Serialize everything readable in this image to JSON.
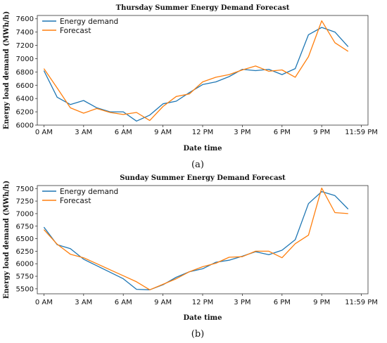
{
  "chart_data": [
    {
      "type": "line",
      "title": "Thursday Summer  Energy Demand Forecast",
      "xlabel": "Date time",
      "ylabel": "Energy load demand (MWh/h)",
      "caption": "(a)",
      "x_ticks": [
        "0 AM",
        "3 AM",
        "6 AM",
        "9 AM",
        "12 PM",
        "3 PM",
        "6 PM",
        "9 PM",
        "11:59 PM"
      ],
      "y_ticks": [
        6000,
        6200,
        6400,
        6600,
        6800,
        7000,
        7200,
        7400,
        7600
      ],
      "xlim": [
        -0.5,
        24.5
      ],
      "ylim": [
        6000,
        7650
      ],
      "legend": "top-left",
      "x": [
        0,
        1,
        2,
        3,
        4,
        5,
        6,
        7,
        8,
        9,
        10,
        11,
        12,
        13,
        14,
        15,
        16,
        17,
        18,
        19,
        20,
        21,
        22,
        23
      ],
      "series": [
        {
          "name": "Energy demand",
          "color": "#1f77b4",
          "values": [
            6820,
            6420,
            6310,
            6370,
            6260,
            6200,
            6200,
            6060,
            6150,
            6320,
            6360,
            6490,
            6610,
            6650,
            6730,
            6840,
            6820,
            6840,
            6760,
            6850,
            7360,
            7470,
            7400,
            7180
          ]
        },
        {
          "name": "Forecast",
          "color": "#ff7f0e",
          "values": [
            6850,
            6560,
            6260,
            6180,
            6250,
            6190,
            6160,
            6190,
            6070,
            6280,
            6430,
            6470,
            6650,
            6720,
            6760,
            6830,
            6890,
            6810,
            6830,
            6720,
            7030,
            7570,
            7240,
            7110
          ]
        }
      ]
    },
    {
      "type": "line",
      "title": "Sunday Summer Energy Demand Forecast",
      "xlabel": "Date time",
      "ylabel": "Energy load demand (MWh/h)",
      "caption": "(b)",
      "x_ticks": [
        "0 AM",
        "3 AM",
        "6 AM",
        "9 AM",
        "12 PM",
        "3 PM",
        "6 PM",
        "9 PM",
        "11:59 PM"
      ],
      "y_ticks": [
        5500,
        5750,
        6000,
        6250,
        6500,
        6750,
        7000,
        7250,
        7500
      ],
      "xlim": [
        -0.5,
        24.5
      ],
      "ylim": [
        5400,
        7560
      ],
      "legend": "top-left",
      "x": [
        0,
        1,
        2,
        3,
        4,
        5,
        6,
        7,
        8,
        9,
        10,
        11,
        12,
        13,
        14,
        15,
        16,
        17,
        18,
        19,
        20,
        21,
        22,
        23
      ],
      "series": [
        {
          "name": "Energy demand",
          "color": "#1f77b4",
          "values": [
            6730,
            6380,
            6300,
            6090,
            5960,
            5830,
            5700,
            5490,
            5480,
            5580,
            5730,
            5840,
            5900,
            6030,
            6070,
            6150,
            6240,
            6180,
            6270,
            6480,
            7200,
            7440,
            7360,
            7090
          ]
        },
        {
          "name": "Forecast",
          "color": "#ff7f0e",
          "values": [
            6680,
            6390,
            6190,
            6120,
            6000,
            5880,
            5760,
            5640,
            5480,
            5590,
            5700,
            5840,
            5940,
            6010,
            6130,
            6140,
            6250,
            6250,
            6120,
            6400,
            6570,
            7510,
            7020,
            7000
          ]
        }
      ]
    }
  ]
}
